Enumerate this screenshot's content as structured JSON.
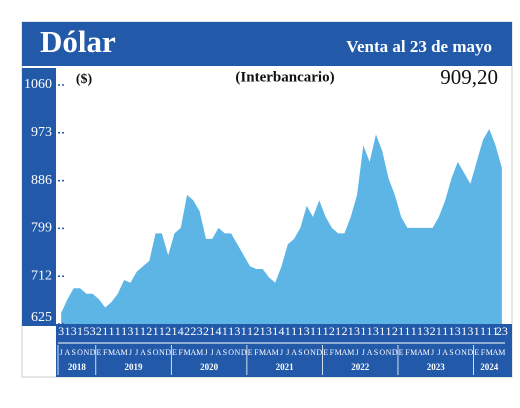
{
  "chart_data": {
    "type": "area",
    "title": "Dólar",
    "subtitle": "Venta al 23 de mayo",
    "y_label": "($)",
    "note": "(Interbancario)",
    "annotation": "909,20",
    "color": "#5cb5e5",
    "ylim": [
      625,
      1060
    ],
    "yticks": [
      625,
      712,
      799,
      886,
      973,
      1060
    ],
    "day_labels": [
      "3",
      "1",
      "3",
      "1",
      "5",
      "3",
      "2",
      "1",
      "1",
      "1",
      "1",
      "3",
      "1",
      "1",
      "2",
      "1",
      "1",
      "2",
      "1",
      "4",
      "2",
      "2",
      "3",
      "2",
      "1",
      "4",
      "1",
      "1",
      "3",
      "1",
      "1",
      "2",
      "1",
      "3",
      "1",
      "4",
      "1",
      "1",
      "1",
      "3",
      "1",
      "1",
      "1",
      "2",
      "1",
      "2",
      "1",
      "3",
      "1",
      "1",
      "3",
      "1",
      "1",
      "2",
      "1",
      "1",
      "1",
      "1",
      "3",
      "2",
      "1",
      "1",
      "1",
      "3",
      "1",
      "3",
      "1",
      "1",
      "1",
      "1",
      "23"
    ],
    "categories": [
      "J",
      "A",
      "S",
      "O",
      "N",
      "D",
      "E",
      "F",
      "M",
      "A",
      "M",
      "J",
      "J",
      "A",
      "S",
      "O",
      "N",
      "D",
      "E",
      "F",
      "M",
      "A",
      "M",
      "J",
      "J",
      "A",
      "S",
      "O",
      "N",
      "D",
      "E",
      "F",
      "M",
      "A",
      "M",
      "J",
      "J",
      "A",
      "S",
      "O",
      "N",
      "D",
      "E",
      "F",
      "M",
      "A",
      "M",
      "J",
      "J",
      "A",
      "S",
      "O",
      "N",
      "D",
      "E",
      "F",
      "M",
      "A",
      "M",
      "J",
      "J",
      "A",
      "S",
      "O",
      "N",
      "D",
      "E",
      "F",
      "M",
      "A",
      "M"
    ],
    "years": [
      "2018",
      "2019",
      "2020",
      "2021",
      "2022",
      "2023",
      "2024"
    ],
    "values": [
      645,
      670,
      690,
      690,
      680,
      680,
      670,
      655,
      665,
      680,
      705,
      700,
      720,
      730,
      740,
      790,
      790,
      750,
      790,
      800,
      860,
      850,
      830,
      780,
      780,
      800,
      790,
      790,
      770,
      750,
      730,
      725,
      725,
      710,
      700,
      730,
      770,
      780,
      800,
      840,
      820,
      850,
      820,
      800,
      790,
      790,
      820,
      860,
      950,
      920,
      970,
      940,
      890,
      860,
      820,
      800,
      800,
      800,
      800,
      800,
      820,
      850,
      890,
      920,
      900,
      880,
      920,
      960,
      980,
      950,
      909.2
    ]
  }
}
